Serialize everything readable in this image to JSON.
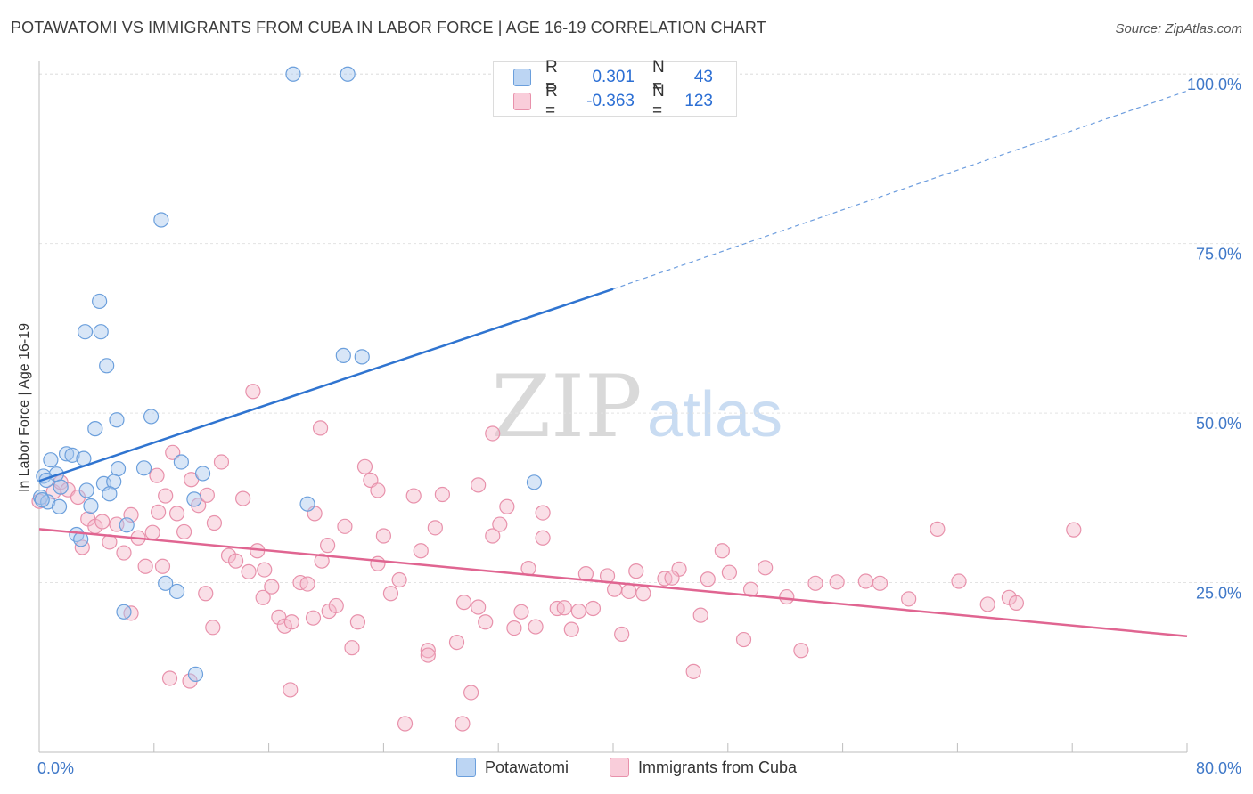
{
  "title": "POTAWATOMI VS IMMIGRANTS FROM CUBA IN LABOR FORCE | AGE 16-19 CORRELATION CHART",
  "source": "Source: ZipAtlas.com",
  "watermark": {
    "zip": "ZIP",
    "atlas": "atlas"
  },
  "legend_stats": {
    "row1": {
      "r_label": "R =",
      "r_value": "0.301",
      "n_label": "N =",
      "n_value": "43"
    },
    "row2": {
      "r_label": "R =",
      "r_value": "-0.363",
      "n_label": "N =",
      "n_value": "123"
    }
  },
  "legend": {
    "series1": "Potawatomi",
    "series2": "Immigrants from Cuba"
  },
  "colors": {
    "blue_fill": "#a9c8ee",
    "blue_stroke": "#6b9fdc",
    "blue_line": "#2f74d0",
    "pink_fill": "#f5b8c9",
    "pink_stroke": "#e891ab",
    "pink_line": "#e06591",
    "axis_text": "#3f78c8",
    "grid": "#e3e3e3"
  },
  "chart_data": {
    "type": "scatter",
    "title": "POTAWATOMI VS IMMIGRANTS FROM CUBA IN LABOR FORCE | AGE 16-19 CORRELATION CHART",
    "xlabel": "",
    "ylabel": "In Labor Force | Age 16-19",
    "xlim": [
      0,
      80
    ],
    "ylim": [
      0,
      102
    ],
    "x_tick_labels": [
      "0.0%",
      "80.0%"
    ],
    "y_ticks": [
      25,
      50,
      75,
      100
    ],
    "y_tick_labels": [
      "25.0%",
      "50.0%",
      "75.0%",
      "100.0%"
    ],
    "grid": true,
    "series": [
      {
        "name": "Potawatomi",
        "r": 0.301,
        "n": 43,
        "trend": {
          "x0": 0,
          "y0": 40.0,
          "x1": 40,
          "y1": 68.3,
          "dash_x1": 80,
          "dash_y1": 97.5
        },
        "points": [
          [
            17.7,
            100
          ],
          [
            21.5,
            100
          ],
          [
            8.5,
            78.5
          ],
          [
            4.2,
            66.5
          ],
          [
            3.2,
            62
          ],
          [
            4.3,
            62
          ],
          [
            4.7,
            57
          ],
          [
            21.2,
            58.5
          ],
          [
            22.5,
            58.3
          ],
          [
            5.4,
            49
          ],
          [
            7.8,
            49.5
          ],
          [
            3.9,
            47.7
          ],
          [
            0.8,
            43.1
          ],
          [
            1.9,
            44
          ],
          [
            2.3,
            43.8
          ],
          [
            3.1,
            43.3
          ],
          [
            9.9,
            42.8
          ],
          [
            5.5,
            41.8
          ],
          [
            7.3,
            41.9
          ],
          [
            1.2,
            41
          ],
          [
            0.3,
            40.7
          ],
          [
            4.5,
            39.6
          ],
          [
            5.2,
            39.9
          ],
          [
            11.4,
            41.1
          ],
          [
            0.5,
            40.1
          ],
          [
            1.5,
            39.1
          ],
          [
            3.3,
            38.6
          ],
          [
            4.9,
            38.1
          ],
          [
            10.8,
            37.3
          ],
          [
            0.1,
            37.6
          ],
          [
            0.6,
            36.9
          ],
          [
            1.4,
            36.2
          ],
          [
            3.6,
            36.3
          ],
          [
            2.6,
            32.1
          ],
          [
            6.1,
            33.5
          ],
          [
            18.7,
            36.6
          ],
          [
            34.5,
            39.8
          ],
          [
            8.8,
            24.9
          ],
          [
            9.6,
            23.7
          ],
          [
            5.9,
            20.7
          ],
          [
            10.9,
            11.5
          ],
          [
            0.2,
            37.2
          ],
          [
            2.9,
            31.4
          ]
        ]
      },
      {
        "name": "Immigrants from Cuba",
        "r": -0.363,
        "n": 123,
        "trend": {
          "x0": 0,
          "y0": 32.9,
          "x1": 80,
          "y1": 17.1
        },
        "points": [
          [
            0.0,
            37.0
          ],
          [
            1.0,
            38.4
          ],
          [
            1.5,
            39.8
          ],
          [
            2.0,
            38.7
          ],
          [
            2.7,
            37.6
          ],
          [
            3.4,
            34.4
          ],
          [
            3.0,
            30.2
          ],
          [
            3.9,
            33.3
          ],
          [
            4.4,
            34.0
          ],
          [
            4.9,
            31.0
          ],
          [
            5.4,
            33.6
          ],
          [
            5.9,
            29.4
          ],
          [
            6.4,
            35.0
          ],
          [
            6.9,
            31.6
          ],
          [
            7.4,
            27.4
          ],
          [
            7.9,
            32.4
          ],
          [
            8.3,
            35.4
          ],
          [
            8.8,
            37.8
          ],
          [
            8.2,
            40.8
          ],
          [
            9.3,
            44.2
          ],
          [
            9.6,
            35.2
          ],
          [
            10.1,
            32.5
          ],
          [
            10.6,
            40.2
          ],
          [
            11.1,
            36.4
          ],
          [
            11.7,
            37.9
          ],
          [
            12.2,
            33.8
          ],
          [
            12.7,
            42.8
          ],
          [
            13.2,
            29.0
          ],
          [
            13.7,
            28.2
          ],
          [
            14.2,
            37.4
          ],
          [
            14.6,
            26.6
          ],
          [
            15.2,
            29.7
          ],
          [
            15.7,
            26.9
          ],
          [
            16.2,
            24.4
          ],
          [
            16.7,
            19.9
          ],
          [
            17.1,
            18.6
          ],
          [
            17.6,
            19.2
          ],
          [
            18.2,
            25.0
          ],
          [
            18.7,
            24.8
          ],
          [
            19.2,
            35.2
          ],
          [
            19.7,
            28.2
          ],
          [
            20.2,
            20.8
          ],
          [
            20.7,
            21.6
          ],
          [
            21.3,
            33.3
          ],
          [
            21.8,
            15.4
          ],
          [
            22.2,
            19.2
          ],
          [
            22.7,
            42.1
          ],
          [
            23.1,
            40.1
          ],
          [
            23.6,
            38.6
          ],
          [
            24.0,
            31.9
          ],
          [
            24.5,
            23.4
          ],
          [
            25.1,
            25.4
          ],
          [
            26.1,
            37.8
          ],
          [
            27.1,
            15.0
          ],
          [
            27.6,
            33.1
          ],
          [
            28.1,
            38.0
          ],
          [
            29.1,
            16.2
          ],
          [
            29.6,
            22.1
          ],
          [
            30.1,
            8.8
          ],
          [
            30.6,
            39.4
          ],
          [
            31.1,
            19.2
          ],
          [
            31.6,
            31.9
          ],
          [
            32.1,
            33.6
          ],
          [
            32.6,
            36.2
          ],
          [
            33.1,
            18.3
          ],
          [
            33.6,
            20.7
          ],
          [
            34.1,
            27.1
          ],
          [
            34.6,
            18.5
          ],
          [
            35.1,
            35.3
          ],
          [
            36.1,
            21.2
          ],
          [
            37.1,
            18.1
          ],
          [
            37.6,
            20.8
          ],
          [
            38.1,
            26.3
          ],
          [
            38.6,
            21.2
          ],
          [
            39.6,
            26.0
          ],
          [
            40.1,
            24.0
          ],
          [
            40.6,
            17.4
          ],
          [
            41.1,
            23.7
          ],
          [
            42.1,
            23.4
          ],
          [
            43.6,
            25.6
          ],
          [
            44.6,
            27.0
          ],
          [
            45.6,
            11.9
          ],
          [
            46.6,
            25.5
          ],
          [
            47.6,
            29.7
          ],
          [
            48.1,
            26.5
          ],
          [
            49.6,
            24.0
          ],
          [
            50.6,
            27.2
          ],
          [
            52.1,
            22.9
          ],
          [
            53.1,
            15.0
          ],
          [
            55.6,
            25.1
          ],
          [
            57.6,
            25.2
          ],
          [
            60.6,
            22.6
          ],
          [
            62.6,
            32.9
          ],
          [
            66.1,
            21.8
          ],
          [
            67.6,
            22.8
          ],
          [
            72.1,
            32.8
          ],
          [
            10.5,
            10.5
          ],
          [
            17.5,
            9.2
          ],
          [
            25.5,
            4.2
          ],
          [
            29.5,
            4.2
          ],
          [
            14.9,
            53.2
          ],
          [
            19.6,
            47.8
          ],
          [
            31.6,
            47.0
          ],
          [
            6.4,
            20.5
          ],
          [
            9.1,
            10.9
          ],
          [
            12.1,
            18.4
          ],
          [
            19.1,
            19.8
          ],
          [
            27.1,
            14.3
          ],
          [
            30.6,
            21.4
          ],
          [
            35.1,
            31.6
          ],
          [
            36.6,
            21.3
          ],
          [
            41.6,
            26.7
          ],
          [
            44.1,
            25.7
          ],
          [
            46.1,
            20.2
          ],
          [
            49.1,
            16.6
          ],
          [
            54.1,
            24.9
          ],
          [
            58.6,
            24.9
          ],
          [
            64.1,
            25.2
          ],
          [
            68.1,
            22.0
          ],
          [
            8.6,
            27.4
          ],
          [
            11.6,
            23.4
          ],
          [
            15.6,
            22.8
          ],
          [
            20.1,
            30.5
          ],
          [
            23.6,
            27.8
          ],
          [
            26.6,
            29.7
          ]
        ]
      }
    ]
  }
}
